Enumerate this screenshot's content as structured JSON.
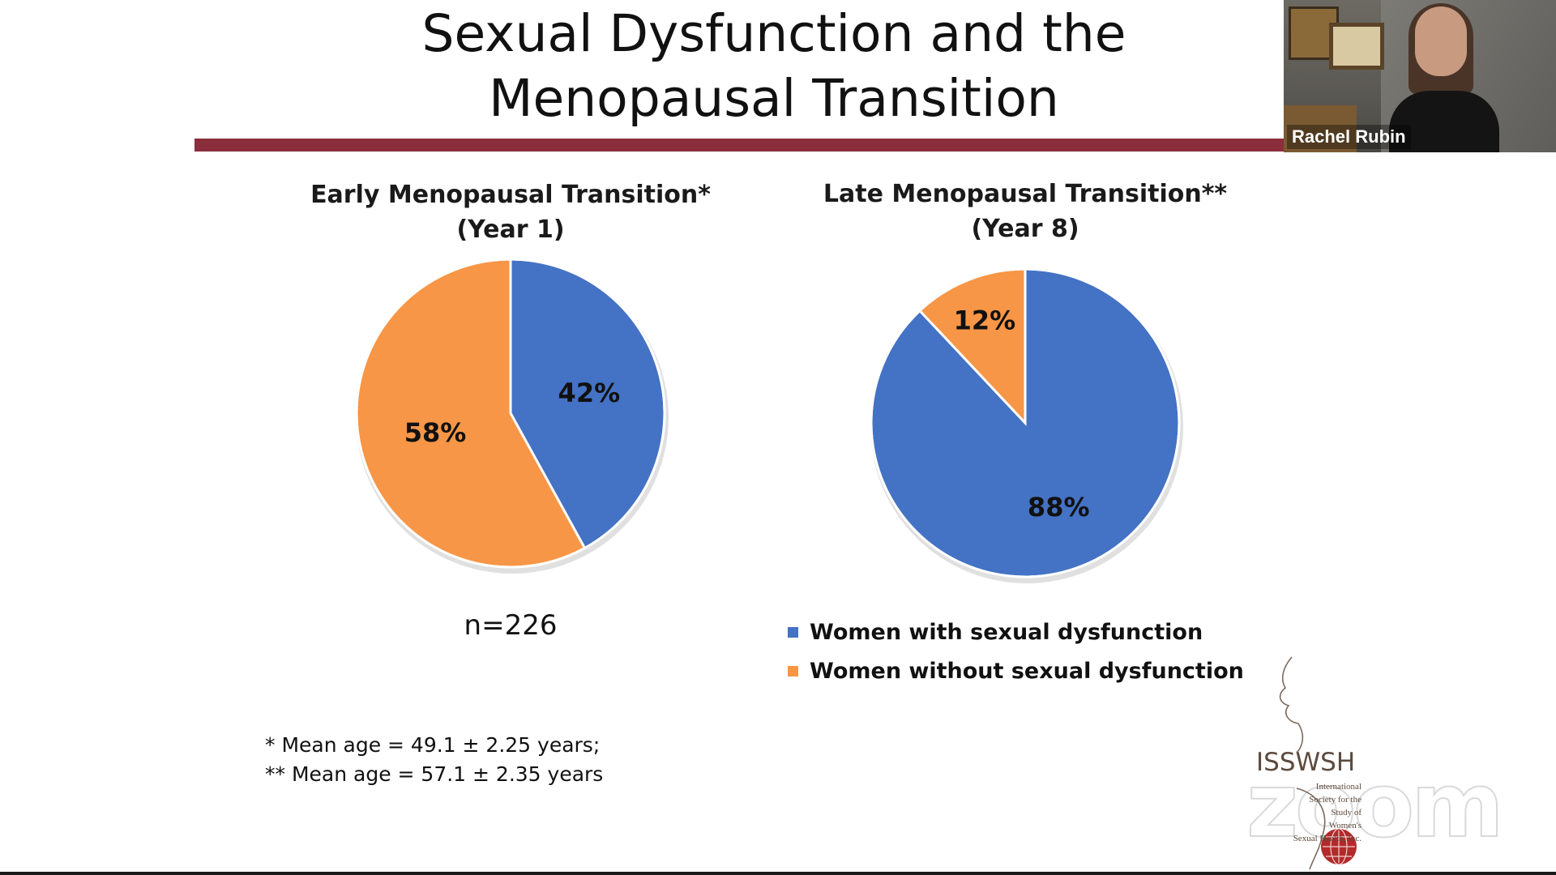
{
  "slide": {
    "title_line1": "Sexual Dysfunction and the",
    "title_line2": "Menopausal Transition",
    "rule_color": "#8a2d3c",
    "footnote1": "* Mean age = 49.1 ± 2.25 years;",
    "footnote2": "** Mean age = 57.1 ± 2.35 years",
    "n_label": "n=226"
  },
  "chart_data": [
    {
      "type": "pie",
      "title_line1": "Early Menopausal Transition*",
      "title_line2": "(Year 1)",
      "slices": [
        {
          "name": "Women with sexual dysfunction",
          "value": 42,
          "label": "42%",
          "color": "#4472c4"
        },
        {
          "name": "Women without sexual dysfunction",
          "value": 58,
          "label": "58%",
          "color": "#f79646"
        }
      ]
    },
    {
      "type": "pie",
      "title_line1": "Late Menopausal Transition**",
      "title_line2": "(Year 8)",
      "slices": [
        {
          "name": "Women with sexual dysfunction",
          "value": 88,
          "label": "88%",
          "color": "#4472c4"
        },
        {
          "name": "Women without sexual dysfunction",
          "value": 12,
          "label": "12%",
          "color": "#f79646"
        }
      ]
    }
  ],
  "legend": {
    "items": [
      {
        "label": "Women with sexual dysfunction",
        "color": "#4472c4"
      },
      {
        "label": "Women without sexual dysfunction",
        "color": "#f79646"
      }
    ]
  },
  "video": {
    "participant_name": "Rachel Rubin"
  },
  "logo": {
    "name": "ISSWSH",
    "sub_lines": [
      "International",
      "Society for the",
      "Study of",
      "Women's",
      "Sexual Health, Inc."
    ],
    "watermark": "zoom"
  }
}
